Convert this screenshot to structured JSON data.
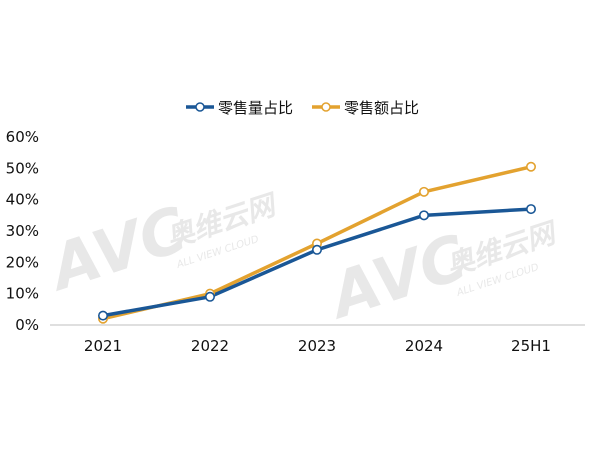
{
  "chart_data": {
    "type": "line",
    "title": "",
    "xlabel": "",
    "ylabel": "",
    "categories": [
      "2021",
      "2022",
      "2023",
      "2024",
      "25H1"
    ],
    "y_ticks": [
      "0%",
      "10%",
      "20%",
      "30%",
      "40%",
      "50%",
      "60%"
    ],
    "ylim": [
      0,
      60
    ],
    "grid": false,
    "legend_position": "top",
    "series": [
      {
        "name": "零售量占比",
        "color": "#1a5796",
        "values": [
          3,
          9,
          24,
          35,
          37
        ]
      },
      {
        "name": "零售额占比",
        "color": "#e3a22f",
        "values": [
          2,
          10,
          26,
          42.5,
          50.5
        ]
      }
    ],
    "watermark": {
      "logo_text": "AVC",
      "brand_cn": "奥维云网",
      "brand_en": "ALL VIEW CLOUD"
    }
  }
}
